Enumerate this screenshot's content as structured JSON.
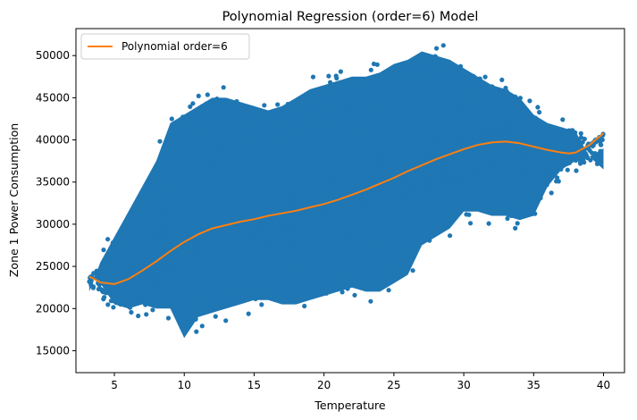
{
  "chart_data": {
    "type": "scatter",
    "title": "Polynomial Regression (order=6) Model",
    "xlabel": "Temperature",
    "ylabel": "Zone 1 Power Consumption",
    "xlim": [
      2.25,
      41.5
    ],
    "ylim": [
      12400,
      53200
    ],
    "xticks": [
      5,
      10,
      15,
      20,
      25,
      30,
      35,
      40
    ],
    "yticks": [
      15000,
      20000,
      25000,
      30000,
      35000,
      40000,
      45000,
      50000
    ],
    "grid": false,
    "legend": {
      "placement": "top-left",
      "entries": [
        "Polynomial order=6"
      ]
    },
    "colors": {
      "scatter": "#1f77b4",
      "fit_line": "#ff7f0e"
    },
    "fit_line": {
      "name": "Polynomial order=6",
      "x": [
        3.2,
        4,
        5,
        6,
        7,
        8,
        9,
        10,
        11,
        12,
        13,
        14,
        15,
        16,
        17,
        18,
        19,
        20,
        21,
        22,
        23,
        24,
        25,
        26,
        27,
        28,
        29,
        30,
        31,
        32,
        33,
        34,
        35,
        36,
        37,
        37.5,
        38,
        39,
        40
      ],
      "y": [
        23800,
        23100,
        22900,
        23500,
        24500,
        25600,
        26800,
        27900,
        28800,
        29500,
        29900,
        30300,
        30600,
        31000,
        31300,
        31600,
        32000,
        32400,
        32900,
        33500,
        34100,
        34800,
        35500,
        36300,
        37000,
        37700,
        38300,
        38900,
        39400,
        39700,
        39800,
        39600,
        39200,
        38800,
        38500,
        38400,
        38500,
        39400,
        40800
      ]
    },
    "scatter_envelope": {
      "x": [
        3.2,
        4,
        5,
        6,
        7,
        8,
        9,
        10,
        11,
        12,
        13,
        14,
        15,
        16,
        17,
        18,
        19,
        20,
        21,
        22,
        23,
        24,
        25,
        26,
        27,
        28,
        29,
        30,
        31,
        32,
        33,
        34,
        35,
        36,
        37,
        38,
        39,
        40
      ],
      "y_min": [
        22500,
        21500,
        19000,
        18500,
        19000,
        18500,
        18500,
        15000,
        17500,
        18000,
        18500,
        19000,
        19500,
        19500,
        19000,
        19000,
        19500,
        20000,
        20500,
        21000,
        20500,
        20500,
        21500,
        22500,
        26000,
        27000,
        28000,
        30000,
        30000,
        29500,
        29500,
        29000,
        29500,
        33000,
        35000,
        36000,
        36500,
        37500
      ],
      "y_max": [
        23500,
        27000,
        30000,
        33000,
        36000,
        39000,
        43500,
        44500,
        45500,
        46500,
        46500,
        46000,
        45500,
        45000,
        45500,
        46500,
        47500,
        48000,
        48500,
        49000,
        49000,
        49500,
        50500,
        51000,
        52000,
        51500,
        51000,
        50000,
        49000,
        48000,
        47500,
        46500,
        44500,
        43500,
        43000,
        42500,
        39500,
        38000
      ]
    }
  }
}
